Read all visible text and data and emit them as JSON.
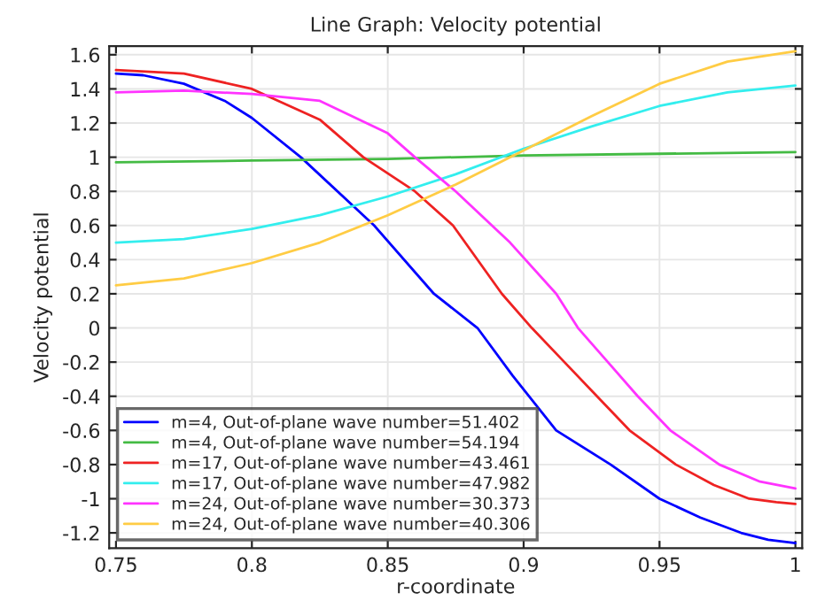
{
  "chart_data": {
    "type": "line",
    "title": "Line Graph: Velocity potential",
    "xlabel": "r-coordinate",
    "ylabel": "Velocity potential",
    "xlim": [
      0.7475,
      1.0025
    ],
    "ylim": [
      -1.29,
      1.65
    ],
    "xticks": [
      0.75,
      0.8,
      0.85,
      0.9,
      0.95,
      1
    ],
    "yticks": [
      -1.2,
      -1,
      -0.8,
      -0.6,
      -0.4,
      -0.2,
      0,
      0.2,
      0.4,
      0.6,
      0.8,
      1,
      1.2,
      1.4,
      1.6
    ],
    "grid": true,
    "legend": "bottom left",
    "marker": "none",
    "line_style": "solid",
    "series": [
      {
        "name": "m=4, Out-of-plane wave number=51.402",
        "color": "#0000ff",
        "x": [
          0.75,
          0.76,
          0.775,
          0.79,
          0.8,
          0.818,
          0.845,
          0.867,
          0.883,
          0.896,
          0.912,
          0.932,
          0.95,
          0.965,
          0.98,
          0.99,
          1.0
        ],
        "values": [
          1.49,
          1.48,
          1.43,
          1.33,
          1.23,
          1.0,
          0.6,
          0.2,
          0.0,
          -0.28,
          -0.6,
          -0.8,
          -1.0,
          -1.11,
          -1.2,
          -1.24,
          -1.26
        ]
      },
      {
        "name": "m=4, Out-of-plane wave number=54.194",
        "color": "#44bb44",
        "x": [
          0.75,
          0.8,
          0.85,
          0.9,
          0.95,
          1.0
        ],
        "values": [
          0.97,
          0.98,
          0.99,
          1.01,
          1.02,
          1.03
        ]
      },
      {
        "name": "m=17, Out-of-plane wave number=43.461",
        "color": "#ee2222",
        "x": [
          0.75,
          0.775,
          0.8,
          0.825,
          0.841,
          0.86,
          0.874,
          0.892,
          0.903,
          0.915,
          0.927,
          0.939,
          0.956,
          0.97,
          0.983,
          0.993,
          1.0
        ],
        "values": [
          1.51,
          1.49,
          1.4,
          1.22,
          1.0,
          0.8,
          0.6,
          0.2,
          0.0,
          -0.2,
          -0.4,
          -0.6,
          -0.8,
          -0.92,
          -1.0,
          -1.02,
          -1.03
        ]
      },
      {
        "name": "m=17, Out-of-plane wave number=47.982",
        "color": "#33eeee",
        "x": [
          0.75,
          0.775,
          0.8,
          0.825,
          0.85,
          0.875,
          0.9,
          0.925,
          0.95,
          0.975,
          1.0
        ],
        "values": [
          0.5,
          0.52,
          0.58,
          0.66,
          0.77,
          0.9,
          1.05,
          1.18,
          1.3,
          1.38,
          1.42
        ]
      },
      {
        "name": "m=24, Out-of-plane wave number=30.373",
        "color": "#ff33ff",
        "x": [
          0.75,
          0.775,
          0.8,
          0.825,
          0.85,
          0.86,
          0.875,
          0.895,
          0.912,
          0.92,
          0.931,
          0.942,
          0.954,
          0.972,
          0.987,
          1.0
        ],
        "values": [
          1.38,
          1.39,
          1.37,
          1.33,
          1.14,
          1.0,
          0.8,
          0.5,
          0.2,
          0.0,
          -0.2,
          -0.4,
          -0.6,
          -0.8,
          -0.9,
          -0.94
        ]
      },
      {
        "name": "m=24, Out-of-plane wave number=40.306",
        "color": "#ffcc44",
        "x": [
          0.75,
          0.775,
          0.8,
          0.825,
          0.85,
          0.875,
          0.9,
          0.925,
          0.95,
          0.975,
          1.0
        ],
        "values": [
          0.25,
          0.29,
          0.38,
          0.5,
          0.66,
          0.84,
          1.04,
          1.24,
          1.43,
          1.56,
          1.62
        ]
      }
    ]
  }
}
